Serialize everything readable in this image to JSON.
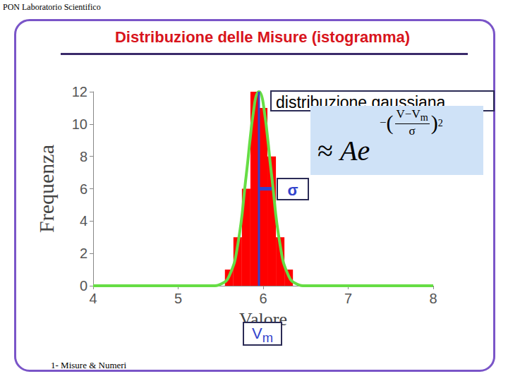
{
  "header": "PON Laboratorio Scientifico",
  "title": "Distribuzione delle Misure (istogramma)",
  "footer": "1- Misure & Numeri",
  "chart_data": {
    "type": "histogram",
    "x_label": "Valore",
    "y_label": "Frequenza",
    "bins": [
      5.55,
      5.65,
      5.75,
      5.85,
      5.95,
      6.05,
      6.15,
      6.25,
      6.35
    ],
    "counts": [
      1,
      3,
      6,
      12,
      11,
      8,
      3,
      1
    ],
    "color": "#ff0000",
    "xlim": [
      4,
      8
    ],
    "xticks": [
      4,
      5,
      6,
      7,
      8
    ],
    "ylim": [
      0,
      12
    ],
    "yticks": [
      0,
      2,
      4,
      6,
      8,
      10,
      12
    ],
    "grid": false,
    "fit": {
      "name": "distribuzione gaussiana",
      "color": "#66dd44",
      "formula": {
        "approx": "≈",
        "amplitude": "A",
        "base": "e",
        "sign": "−",
        "numerator": "V−V",
        "numerator_sub": "m",
        "denominator": "σ",
        "open": "(",
        "close": ")",
        "power": "2"
      },
      "x": [
        4,
        5.4,
        5.5,
        5.6,
        5.7,
        5.8,
        5.9,
        5.95,
        6.0,
        6.1,
        6.2,
        6.3,
        6.4,
        6.5,
        8
      ],
      "values": [
        0,
        0,
        0.1,
        0.6,
        2.5,
        6.8,
        11.3,
        12,
        11.3,
        6.8,
        2.5,
        0.6,
        0.1,
        0,
        0
      ]
    },
    "vm": {
      "label": "V",
      "label_sub": "m",
      "value": 5.95,
      "color": "#3344cc"
    },
    "sigma": {
      "label": "σ",
      "value": 0.15,
      "y": 6,
      "color": "#3344cc"
    }
  }
}
